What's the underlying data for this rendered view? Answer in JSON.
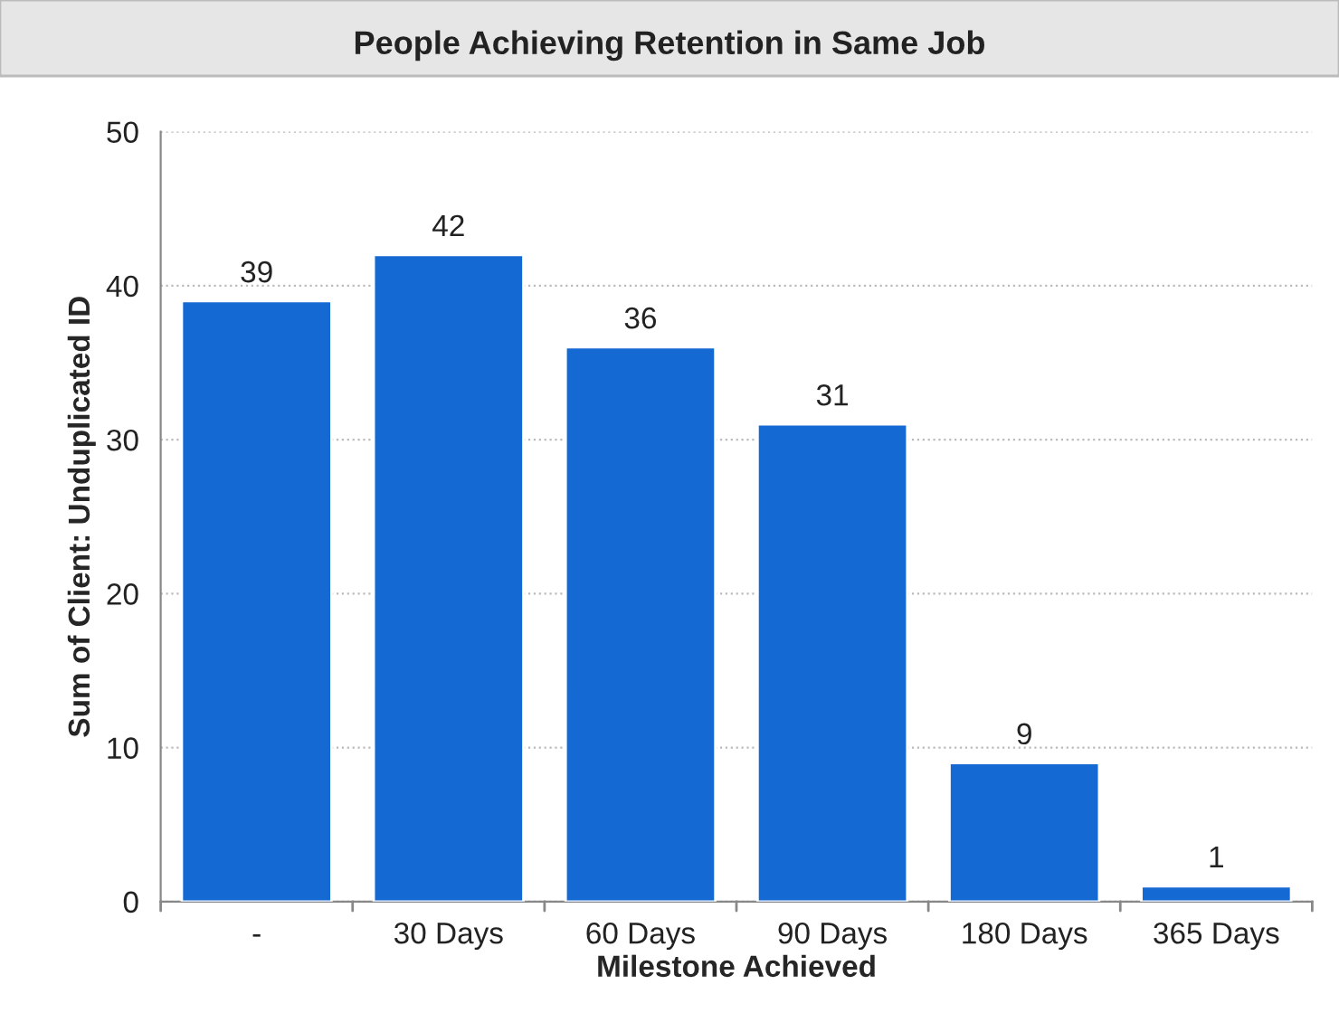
{
  "chart_data": {
    "type": "bar",
    "title": "People Achieving Retention in Same Job",
    "xlabel": "Milestone Achieved",
    "ylabel": "Sum of Client: Unduplicated ID",
    "categories": [
      "-",
      "30 Days",
      "60 Days",
      "90 Days",
      "180 Days",
      "365 Days"
    ],
    "values": [
      39,
      42,
      36,
      31,
      9,
      1
    ],
    "color": "#1569d3",
    "ylim": [
      0,
      50
    ],
    "yticks": [
      0,
      10,
      20,
      30,
      40,
      50
    ],
    "grid": "y",
    "data_labels": true
  }
}
